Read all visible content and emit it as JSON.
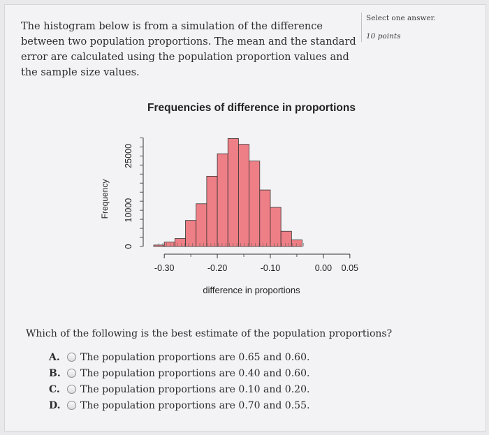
{
  "question": {
    "text": "The histogram below is from a simulation of the difference between two population proportions. The mean and the standard error are calculated using the population proportion values and the sample size values."
  },
  "sidebar": {
    "select_hint": "Select one answer.",
    "points": "10 points"
  },
  "chart_data": {
    "type": "bar",
    "title": "Frequencies of difference in proportions",
    "xlabel": "difference in proportions",
    "ylabel": "Frequency",
    "xlim": [
      -0.32,
      0.07
    ],
    "ylim": [
      0,
      32000
    ],
    "x_ticks": [
      -0.3,
      -0.2,
      -0.1,
      0.0,
      0.05
    ],
    "x_tick_labels": [
      "-0.30",
      "-0.20",
      "-0.10",
      "0.00",
      "0.05"
    ],
    "y_ticks": [
      0,
      10000,
      25000
    ],
    "y_tick_labels": [
      "0",
      "10000",
      "25000"
    ],
    "bin_width": 0.02,
    "bins": [
      {
        "x0": -0.32,
        "x1": -0.3,
        "value": 400
      },
      {
        "x0": -0.3,
        "x1": -0.28,
        "value": 1200
      },
      {
        "x0": -0.28,
        "x1": -0.26,
        "value": 2200
      },
      {
        "x0": -0.26,
        "x1": -0.24,
        "value": 7200
      },
      {
        "x0": -0.24,
        "x1": -0.22,
        "value": 11800
      },
      {
        "x0": -0.22,
        "x1": -0.2,
        "value": 19400
      },
      {
        "x0": -0.2,
        "x1": -0.18,
        "value": 25600
      },
      {
        "x0": -0.18,
        "x1": -0.16,
        "value": 29800
      },
      {
        "x0": -0.16,
        "x1": -0.14,
        "value": 28200
      },
      {
        "x0": -0.14,
        "x1": -0.12,
        "value": 23600
      },
      {
        "x0": -0.12,
        "x1": -0.1,
        "value": 15600
      },
      {
        "x0": -0.1,
        "x1": -0.08,
        "value": 10800
      },
      {
        "x0": -0.08,
        "x1": -0.06,
        "value": 4200
      },
      {
        "x0": -0.06,
        "x1": -0.04,
        "value": 1800
      }
    ],
    "bar_color": "#ef7f86",
    "bar_edge": "#333333",
    "grid": false
  },
  "prompt": "Which of the following is the best estimate of the population proportions?",
  "options": [
    {
      "letter": "A.",
      "text": "The population proportions are 0.65 and 0.60."
    },
    {
      "letter": "B.",
      "text": "The population proportions are 0.40 and 0.60."
    },
    {
      "letter": "C.",
      "text": "The population proportions are 0.10 and 0.20."
    },
    {
      "letter": "D.",
      "text": "The population proportions are 0.70 and 0.55."
    }
  ]
}
